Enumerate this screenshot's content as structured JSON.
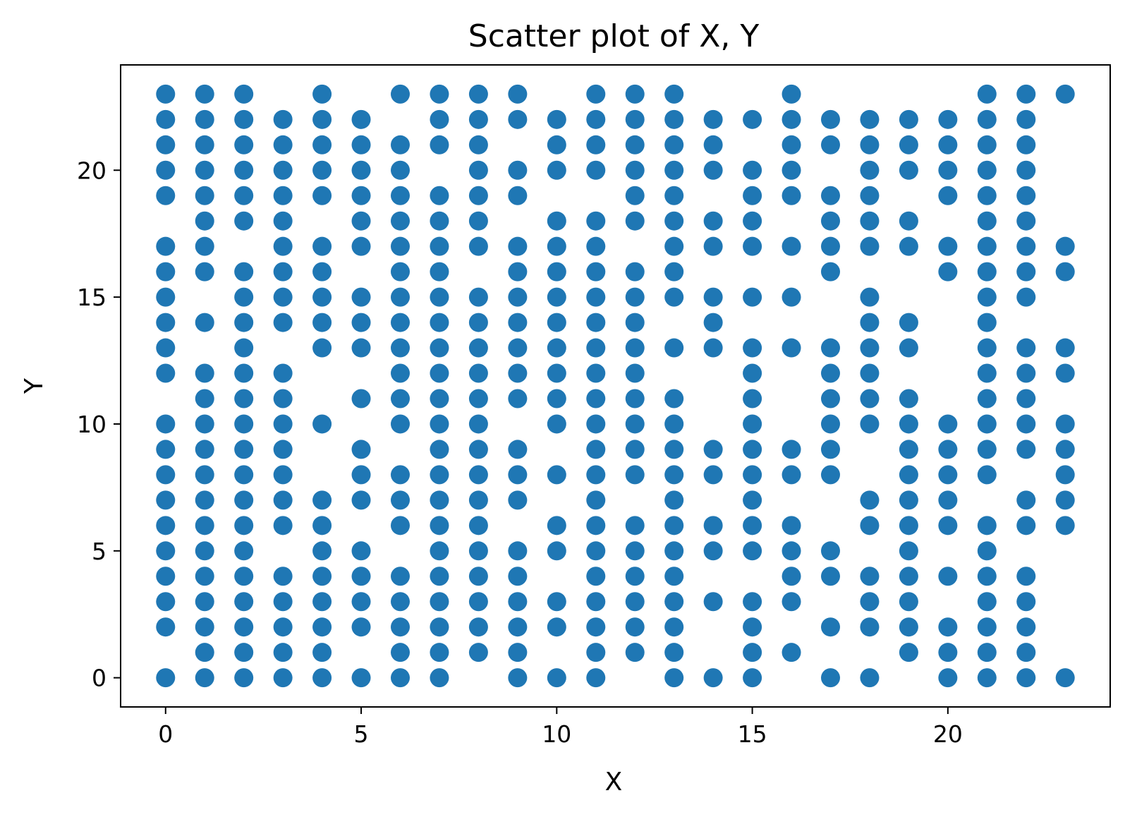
{
  "chart_data": {
    "type": "scatter",
    "title": "Scatter plot of X, Y",
    "xlabel": "X",
    "ylabel": "Y",
    "xlim": [
      -1.15,
      24.15
    ],
    "ylim": [
      -1.15,
      24.15
    ],
    "xticks": [
      0,
      5,
      10,
      15,
      20
    ],
    "yticks": [
      0,
      5,
      10,
      15,
      20
    ],
    "xtick_labels": [
      "0",
      "5",
      "10",
      "15",
      "20"
    ],
    "ytick_labels": [
      "0",
      "5",
      "10",
      "15",
      "20"
    ],
    "grid": false,
    "marker_color": "#1f77b4",
    "columns": [
      {
        "x": 0,
        "y": [
          0,
          2,
          3,
          4,
          5,
          6,
          7,
          8,
          9,
          10,
          12,
          13,
          14,
          15,
          16,
          17,
          19,
          20,
          21,
          22,
          23
        ]
      },
      {
        "x": 1,
        "y": [
          0,
          1,
          2,
          3,
          4,
          5,
          6,
          7,
          8,
          9,
          10,
          11,
          12,
          14,
          16,
          17,
          18,
          19,
          20,
          21,
          22,
          23
        ]
      },
      {
        "x": 2,
        "y": [
          0,
          1,
          2,
          3,
          4,
          5,
          6,
          7,
          8,
          9,
          10,
          11,
          12,
          13,
          14,
          15,
          16,
          18,
          19,
          20,
          21,
          22,
          23
        ]
      },
      {
        "x": 3,
        "y": [
          0,
          1,
          2,
          3,
          4,
          6,
          7,
          8,
          9,
          10,
          11,
          12,
          14,
          15,
          16,
          17,
          18,
          19,
          20,
          21,
          22
        ]
      },
      {
        "x": 4,
        "y": [
          0,
          1,
          2,
          3,
          4,
          5,
          6,
          7,
          10,
          13,
          14,
          15,
          16,
          17,
          19,
          20,
          21,
          22,
          23
        ]
      },
      {
        "x": 5,
        "y": [
          0,
          2,
          3,
          4,
          5,
          7,
          8,
          9,
          11,
          13,
          14,
          15,
          17,
          18,
          19,
          20,
          21,
          22
        ]
      },
      {
        "x": 6,
        "y": [
          0,
          1,
          2,
          3,
          4,
          6,
          7,
          8,
          10,
          11,
          12,
          13,
          14,
          15,
          16,
          17,
          18,
          19,
          20,
          21,
          23
        ]
      },
      {
        "x": 7,
        "y": [
          0,
          1,
          2,
          3,
          4,
          5,
          6,
          7,
          8,
          9,
          10,
          11,
          12,
          13,
          14,
          15,
          16,
          17,
          18,
          19,
          21,
          22,
          23
        ]
      },
      {
        "x": 8,
        "y": [
          1,
          2,
          3,
          4,
          5,
          6,
          7,
          8,
          9,
          10,
          11,
          12,
          13,
          14,
          15,
          17,
          18,
          19,
          20,
          21,
          22,
          23
        ]
      },
      {
        "x": 9,
        "y": [
          0,
          1,
          2,
          3,
          4,
          5,
          7,
          8,
          9,
          11,
          12,
          13,
          14,
          15,
          16,
          17,
          19,
          20,
          22,
          23
        ]
      },
      {
        "x": 10,
        "y": [
          0,
          2,
          3,
          5,
          6,
          8,
          10,
          11,
          12,
          13,
          14,
          15,
          16,
          17,
          18,
          20,
          21,
          22
        ]
      },
      {
        "x": 11,
        "y": [
          0,
          1,
          2,
          3,
          4,
          5,
          6,
          7,
          8,
          9,
          10,
          11,
          12,
          13,
          14,
          15,
          16,
          17,
          18,
          20,
          21,
          22,
          23
        ]
      },
      {
        "x": 12,
        "y": [
          1,
          2,
          3,
          4,
          5,
          6,
          8,
          9,
          10,
          11,
          12,
          13,
          14,
          15,
          16,
          18,
          19,
          20,
          21,
          22,
          23
        ]
      },
      {
        "x": 13,
        "y": [
          0,
          1,
          2,
          3,
          4,
          5,
          6,
          7,
          8,
          9,
          10,
          11,
          13,
          15,
          16,
          17,
          18,
          19,
          20,
          21,
          22,
          23
        ]
      },
      {
        "x": 14,
        "y": [
          0,
          3,
          5,
          6,
          8,
          9,
          13,
          14,
          15,
          17,
          18,
          20,
          21,
          22
        ]
      },
      {
        "x": 15,
        "y": [
          0,
          1,
          2,
          3,
          5,
          6,
          7,
          8,
          9,
          10,
          11,
          12,
          13,
          15,
          17,
          18,
          19,
          20,
          22
        ]
      },
      {
        "x": 16,
        "y": [
          1,
          3,
          4,
          5,
          6,
          8,
          9,
          13,
          15,
          17,
          19,
          20,
          21,
          22,
          23
        ]
      },
      {
        "x": 17,
        "y": [
          0,
          2,
          4,
          5,
          8,
          9,
          10,
          11,
          12,
          13,
          16,
          17,
          18,
          19,
          21,
          22
        ]
      },
      {
        "x": 18,
        "y": [
          0,
          2,
          3,
          4,
          6,
          7,
          10,
          11,
          12,
          13,
          14,
          15,
          17,
          18,
          19,
          20,
          21,
          22
        ]
      },
      {
        "x": 19,
        "y": [
          1,
          2,
          3,
          4,
          5,
          6,
          7,
          8,
          9,
          10,
          11,
          13,
          14,
          17,
          18,
          20,
          21,
          22
        ]
      },
      {
        "x": 20,
        "y": [
          0,
          1,
          2,
          4,
          6,
          7,
          8,
          9,
          10,
          16,
          17,
          19,
          20,
          21,
          22
        ]
      },
      {
        "x": 21,
        "y": [
          0,
          1,
          2,
          3,
          4,
          5,
          6,
          8,
          9,
          10,
          11,
          12,
          13,
          14,
          15,
          16,
          17,
          18,
          19,
          20,
          21,
          22,
          23
        ]
      },
      {
        "x": 22,
        "y": [
          0,
          1,
          2,
          3,
          4,
          6,
          7,
          9,
          10,
          11,
          12,
          13,
          15,
          16,
          17,
          18,
          19,
          20,
          21,
          22,
          23
        ]
      },
      {
        "x": 23,
        "y": [
          0,
          6,
          7,
          8,
          9,
          10,
          12,
          13,
          16,
          17,
          23
        ]
      }
    ]
  }
}
